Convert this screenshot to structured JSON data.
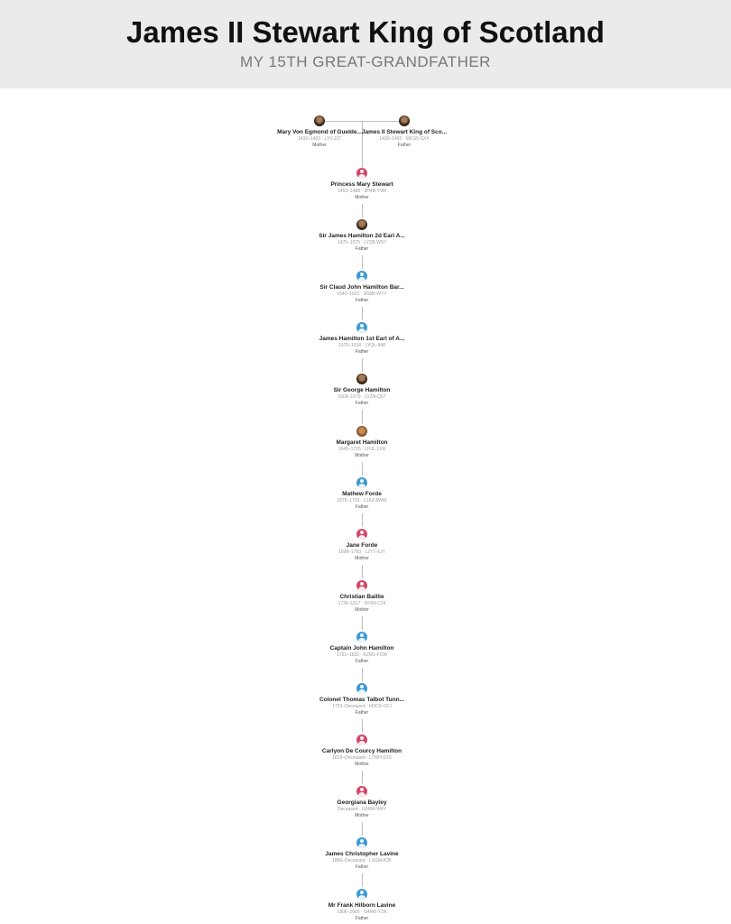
{
  "header": {
    "title": "James II Stewart King of Scotland",
    "subtitle": "MY 15TH GREAT-GRANDFATHER"
  },
  "parents": [
    {
      "name": "Mary Von Egmond of Guelde...",
      "dates": "1433–1463 · LYV-J37",
      "relation": "Mother",
      "avatar": "photo-dark-avatar"
    },
    {
      "name": "James II Stewart King of Sco...",
      "dates": "1430–1460 · MKG5-SXX",
      "relation": "Father",
      "avatar": "photo-dark-avatar"
    }
  ],
  "people": [
    {
      "name": "Princess Mary Stewart",
      "dates": "1453–1488 · 9H4B-Y9M",
      "relation": "Mother",
      "avatar": "female-avatar"
    },
    {
      "name": "Sir James Hamilton 2d Earl A...",
      "dates": "1475–1575 · LYZB-WS7",
      "relation": "Father",
      "avatar": "photo-dark-avatar"
    },
    {
      "name": "Sir Claud John Hamilton Bar...",
      "dates": "1543–1622 · 9G8B-WYY",
      "relation": "Father",
      "avatar": "male-avatar"
    },
    {
      "name": "James Hamilton 1st Earl of A...",
      "dates": "1575–1618 · LYQL-848",
      "relation": "Father",
      "avatar": "male-avatar"
    },
    {
      "name": "Sir George Hamilton",
      "dates": "1608–1679 · LVZN-Q57",
      "relation": "Father",
      "avatar": "photo-dark-avatar"
    },
    {
      "name": "Margaret Hamilton",
      "dates": "1640–1725 · LHJL-1XR",
      "relation": "Mother",
      "avatar": "photo-gold-avatar"
    },
    {
      "name": "Mathew Forde",
      "dates": "1670–1729 · L1XZ-8WW",
      "relation": "Father",
      "avatar": "male-avatar"
    },
    {
      "name": "Jane Forde",
      "dates": "1698–1783 · L2YT-XJY",
      "relation": "Mother",
      "avatar": "female-avatar"
    },
    {
      "name": "Christian Baillie",
      "dates": "1730–1817 · KF6N-C24",
      "relation": "Mother",
      "avatar": "female-avatar"
    },
    {
      "name": "Captain John Hamilton",
      "dates": "1751–1825 · KZM1-FCW",
      "relation": "Father",
      "avatar": "male-avatar"
    },
    {
      "name": "Colonel Thomas Talbot Tunn...",
      "dates": "1793–Deceased · M3CK-CFJ",
      "relation": "Father",
      "avatar": "male-avatar"
    },
    {
      "name": "Carlyon De Courcy Hamilton",
      "dates": "1829–Deceased · LTWH-D15",
      "relation": "Mother",
      "avatar": "female-avatar"
    },
    {
      "name": "Georgiana Bayley",
      "dates": "Deceased · G5RW-W4Y",
      "relation": "Mother",
      "avatar": "female-avatar"
    },
    {
      "name": "James Christopher Lavine",
      "dates": "1866–Deceased · LXGM-K2F",
      "relation": "Father",
      "avatar": "male-avatar"
    },
    {
      "name": "Mr Frank Hilborn Lavine",
      "dates": "1906–2000 · G4W6-Y1N",
      "relation": "Father",
      "avatar": "male-avatar"
    }
  ],
  "colors": {
    "header_bg": "#ebebeb",
    "male": "#3d9bd3",
    "female": "#d2486a",
    "connector": "#bdbdbd"
  }
}
